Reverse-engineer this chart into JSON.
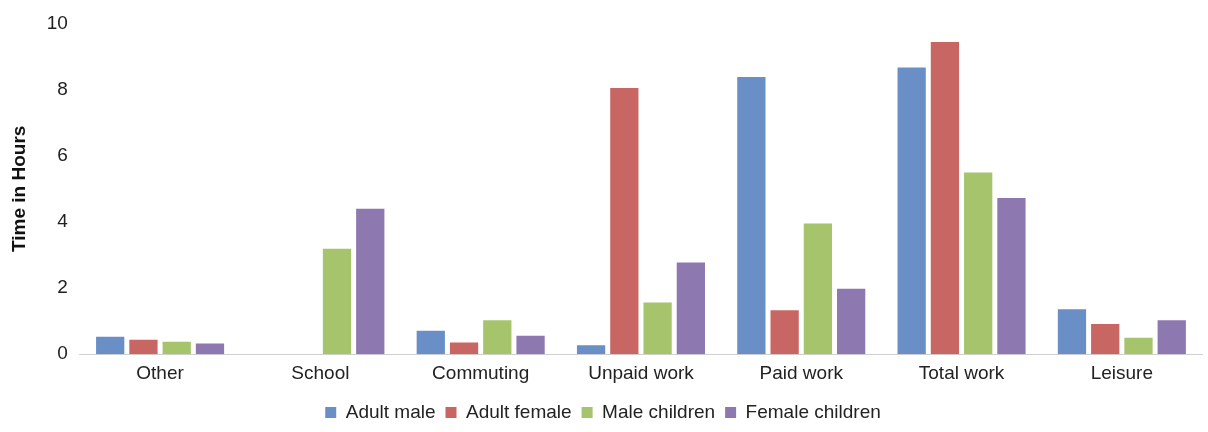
{
  "chart_data": {
    "type": "bar",
    "ylabel": "Time in Hours",
    "categories": [
      "Other",
      "School",
      "Commuting",
      "Unpaid work",
      "Paid work",
      "Total work",
      "Leisure"
    ],
    "series": [
      {
        "name": "Adult male",
        "color": "#6a8fc7",
        "values": [
          0.53,
          0,
          0.71,
          0.27,
          8.38,
          8.67,
          1.36
        ]
      },
      {
        "name": "Adult female",
        "color": "#c86664",
        "values": [
          0.44,
          0,
          0.35,
          8.05,
          1.33,
          9.44,
          0.91
        ]
      },
      {
        "name": "Male children",
        "color": "#a6c46c",
        "values": [
          0.38,
          3.19,
          1.03,
          1.56,
          3.95,
          5.49,
          0.5
        ]
      },
      {
        "name": "Female children",
        "color": "#8e78b0",
        "values": [
          0.32,
          4.4,
          0.56,
          2.77,
          1.98,
          4.72,
          1.03
        ]
      }
    ],
    "ylim": [
      0,
      10
    ],
    "yticks": [
      0,
      2,
      4,
      6,
      8,
      10
    ],
    "grid": false,
    "legend": "bottom"
  }
}
